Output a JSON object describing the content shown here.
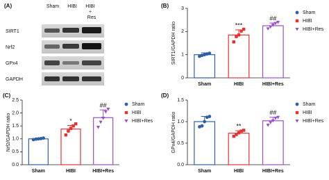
{
  "blot": {
    "panel": "(A)",
    "columns": [
      "Sham",
      "HIBI",
      [
        "HIBI",
        "+",
        "Res"
      ]
    ],
    "rows": [
      "SIRT1",
      "Nrf2",
      "GPx4",
      "GAPDH"
    ]
  },
  "chart_data": [
    {
      "type": "bar",
      "panel": "(B)",
      "y_label": "SIRT1/GAPDH ratio",
      "categories": [
        "Sham",
        "HIBI",
        "HIBI+Res"
      ],
      "colors": [
        "#2f5fa8",
        "#e8312f",
        "#9b4fc7"
      ],
      "markers": [
        "circle",
        "square",
        "triangle"
      ],
      "values": [
        1.0,
        1.85,
        2.25
      ],
      "errors": [
        0.08,
        0.22,
        0.12
      ],
      "points": [
        [
          0.93,
          0.97,
          1.0,
          1.03,
          1.06
        ],
        [
          1.55,
          1.78,
          1.85,
          2.02,
          2.1
        ],
        [
          2.12,
          2.2,
          2.28,
          2.35,
          2.4
        ]
      ],
      "annotations": [
        null,
        "***",
        "##"
      ],
      "ylim": [
        0,
        3
      ],
      "yticks": [
        0,
        1,
        2,
        3
      ]
    },
    {
      "type": "bar",
      "panel": "(C)",
      "y_label": "Nrf2/GAPDH ratio",
      "categories": [
        "Sham",
        "HIBI",
        "HIBI+Res"
      ],
      "colors": [
        "#2f5fa8",
        "#e8312f",
        "#9b4fc7"
      ],
      "markers": [
        "circle",
        "square",
        "triangle"
      ],
      "values": [
        1.0,
        1.38,
        1.82
      ],
      "errors": [
        0.03,
        0.14,
        0.3
      ],
      "points": [
        [
          0.97,
          0.99,
          1.0,
          1.01,
          1.03
        ],
        [
          1.15,
          1.3,
          1.4,
          1.5,
          1.58
        ],
        [
          1.45,
          1.65,
          1.8,
          2.05,
          2.15
        ]
      ],
      "annotations": [
        null,
        "*",
        "##"
      ],
      "ylim": [
        0,
        2.5
      ],
      "yticks": [
        {
          "value": 0,
          "label": "0.0"
        },
        0.5,
        {
          "value": 1,
          "label": "1.0"
        },
        1.5,
        {
          "value": 2,
          "label": "2.0"
        },
        2.5
      ]
    },
    {
      "type": "bar",
      "panel": "(D)",
      "y_label": "GPx4/GAPDH ratio",
      "categories": [
        "Sham",
        "HIBI",
        "HIBI+Res"
      ],
      "colors": [
        "#2f5fa8",
        "#e8312f",
        "#9b4fc7"
      ],
      "markers": [
        "circle",
        "square",
        "triangle"
      ],
      "values": [
        1.0,
        0.73,
        1.02
      ],
      "errors": [
        0.12,
        0.06,
        0.08
      ],
      "points": [
        [
          0.88,
          0.9,
          1.0,
          1.1,
          1.12
        ],
        [
          0.66,
          0.7,
          0.74,
          0.78,
          0.8
        ],
        [
          0.92,
          0.98,
          1.02,
          1.08,
          1.1
        ]
      ],
      "annotations": [
        null,
        "**",
        "##"
      ],
      "ylim": [
        0,
        1.5
      ],
      "yticks": [
        {
          "value": 0,
          "label": "0.0"
        },
        0.5,
        {
          "value": 1,
          "label": "1.0"
        },
        1.5
      ]
    }
  ]
}
